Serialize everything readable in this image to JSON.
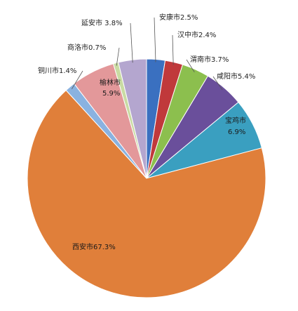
{
  "chart_data": {
    "type": "pie",
    "title": "",
    "start_angle_deg": 90,
    "direction": "clockwise",
    "legend": "none",
    "slices": [
      {
        "name": "安康市",
        "value": 2.5,
        "label": "安康市2.5%",
        "color": "#3a70c0"
      },
      {
        "name": "汉中市",
        "value": 2.4,
        "label": "汉中市2.4%",
        "color": "#c0393b"
      },
      {
        "name": "渭南市",
        "value": 3.7,
        "label": "渭南市3.7%",
        "color": "#8cbf4e"
      },
      {
        "name": "咸阳市",
        "value": 5.4,
        "label": "咸阳市5.4%",
        "color": "#6a4f9b"
      },
      {
        "name": "宝鸡市",
        "value": 6.9,
        "label": "宝鸡市",
        "pct_label": "6.9%",
        "color": "#3a9fc0"
      },
      {
        "name": "西安市",
        "value": 67.3,
        "label": "西安市67.3%",
        "color": "#e07f3a"
      },
      {
        "name": "铜川市",
        "value": 1.4,
        "label": "铜川市1.4%",
        "color": "#8ab2e0"
      },
      {
        "name": "榆林市",
        "value": 5.9,
        "label": "榆林市",
        "pct_label": "5.9%",
        "color": "#e3989a"
      },
      {
        "name": "商洛市",
        "value": 0.7,
        "label": "商洛市0.7%",
        "color": "#c9dba3"
      },
      {
        "name": "延安市",
        "value": 3.8,
        "label": "延安市 3.8%",
        "color": "#b4a6cf"
      }
    ]
  }
}
